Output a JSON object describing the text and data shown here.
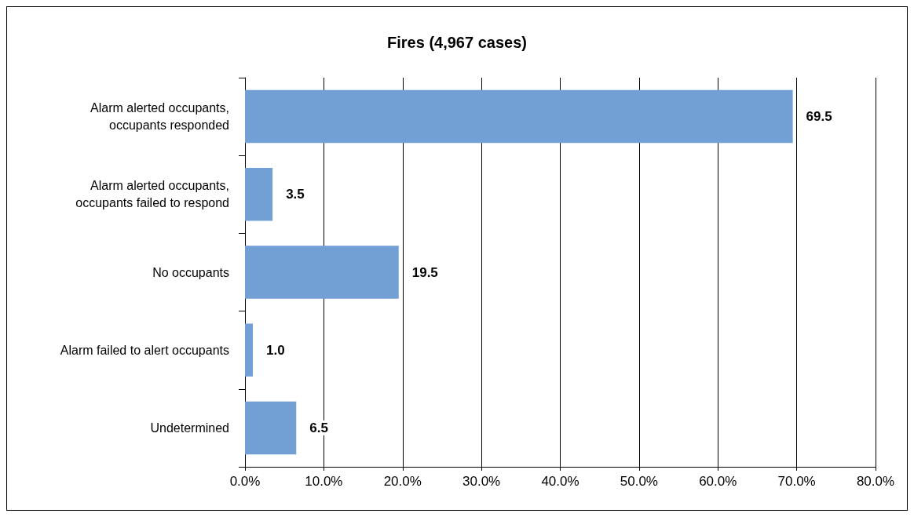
{
  "chart_data": {
    "type": "bar",
    "orientation": "horizontal",
    "title": "Fires (4,967 cases)",
    "categories": [
      "Alarm alerted occupants,\noccupants responded",
      "Alarm alerted occupants,\noccupants failed to respond",
      "No occupants",
      "Alarm failed to alert occupants",
      "Undetermined"
    ],
    "values": [
      69.5,
      3.5,
      19.5,
      1.0,
      6.5
    ],
    "value_labels": [
      "69.5",
      "3.5",
      "19.5",
      "1.0",
      "6.5"
    ],
    "color": "#729fd4",
    "xlim": [
      0,
      80
    ],
    "xticks": [
      {
        "value": 0,
        "label": "0.0%"
      },
      {
        "value": 10,
        "label": "10.0%"
      },
      {
        "value": 20,
        "label": "20.0%"
      },
      {
        "value": 30,
        "label": "30.0%"
      },
      {
        "value": 40,
        "label": "40.0%"
      },
      {
        "value": 50,
        "label": "50.0%"
      },
      {
        "value": 60,
        "label": "60.0%"
      },
      {
        "value": 70,
        "label": "70.0%"
      },
      {
        "value": 80,
        "label": "80.0%"
      }
    ],
    "grid": "x"
  }
}
